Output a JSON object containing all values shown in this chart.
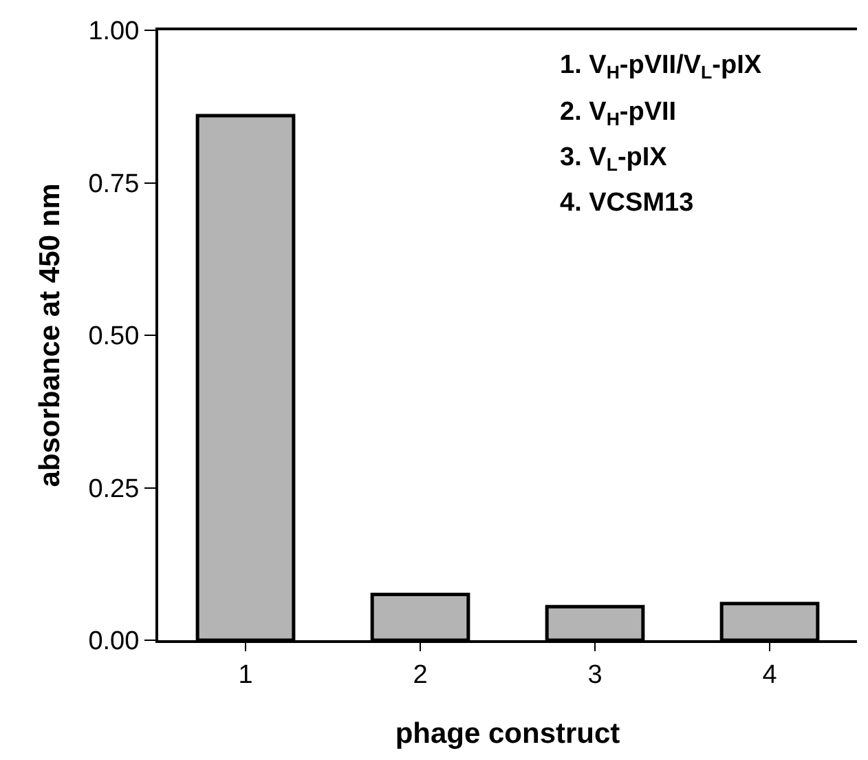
{
  "chart_data": {
    "type": "bar",
    "xlabel": "phage construct",
    "ylabel": "absorbance at 450 nm",
    "categories": [
      "1",
      "2",
      "3",
      "4"
    ],
    "values": [
      0.86,
      0.075,
      0.055,
      0.06
    ],
    "color": "#b4b4b4",
    "ylim": [
      0,
      1
    ],
    "yticks": [
      {
        "value": 0,
        "label": "0.00"
      },
      {
        "value": 0.25,
        "label": "0.25"
      },
      {
        "value": 0.5,
        "label": "0.50"
      },
      {
        "value": 0.75,
        "label": "0.75"
      },
      {
        "value": 1,
        "label": "1.00"
      }
    ],
    "grid": false,
    "annotations": [
      "1. V$_{H}$-pVII/V$_{L}$-pIX",
      "2. V$_{H}$-pVII",
      "3. V$_{L}$-pIX",
      "4. VCSM13"
    ]
  }
}
